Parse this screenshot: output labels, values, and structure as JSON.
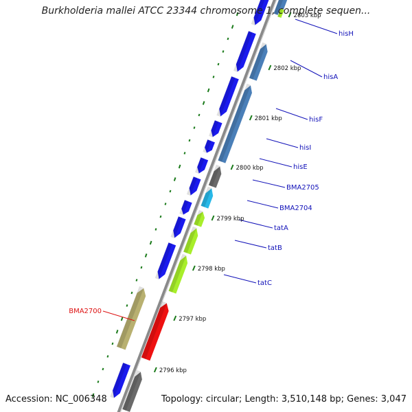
{
  "title": "Burkholderia mallei ATCC 23344 chromosome 1, complete sequen...",
  "accession": "Accession: NC_006348",
  "topology": "Topology: circular; Length: 3,510,148 bp; Genes: 3,047",
  "colors": {
    "backbone": "#8a8a8a",
    "green_ticks": "#1a7a1a",
    "gene_blue": "#1a1aee",
    "gene_steel": "#4a7fb8",
    "gene_lime": "#a8ee2a",
    "gene_gray": "#6a6a6a",
    "gene_cyan": "#28b8e8",
    "gene_red": "#ee1111",
    "gene_khaki": "#b8b070",
    "label_blue": "#1010b8",
    "label_red": "#dd1111"
  },
  "ticks": [
    {
      "label": "2803 kbp"
    },
    {
      "label": "2802 kbp"
    },
    {
      "label": "2801 kbp"
    },
    {
      "label": "2800 kbp"
    },
    {
      "label": "2799 kbp"
    },
    {
      "label": "2798 kbp"
    },
    {
      "label": "2797 kbp"
    },
    {
      "label": "2796 kbp"
    }
  ],
  "gene_labels": [
    {
      "name": "hisH"
    },
    {
      "name": "hisA"
    },
    {
      "name": "hisF"
    },
    {
      "name": "hisI"
    },
    {
      "name": "hisE"
    },
    {
      "name": "BMA2705"
    },
    {
      "name": "BMA2704"
    },
    {
      "name": "tatA"
    },
    {
      "name": "tatB"
    },
    {
      "name": "tatC"
    },
    {
      "name": "BMA2700"
    }
  ]
}
